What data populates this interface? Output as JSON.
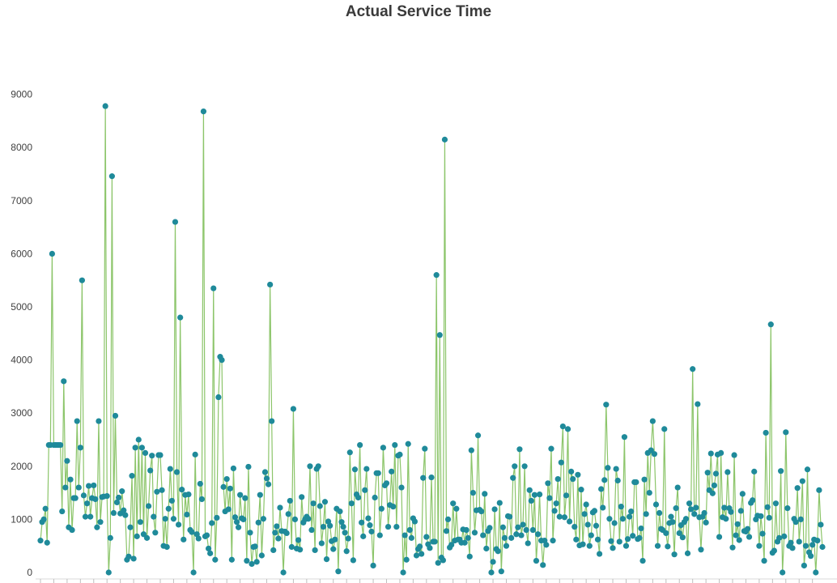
{
  "chart_data": {
    "type": "line",
    "title": "Actual Service Time",
    "xlabel": "",
    "ylabel": "",
    "ylim": [
      0,
      9800
    ],
    "yticks": [
      0,
      1000,
      2000,
      3000,
      4000,
      5000,
      6000,
      7000,
      8000,
      9000
    ],
    "grid": false,
    "legend": "none",
    "colors": {
      "line": "#8cc56a",
      "marker": "#1f8a9a",
      "axis": "#d9d9d9",
      "text": "#404040"
    },
    "series": [
      {
        "values": [
          600,
          950,
          1000,
          1200,
          560,
          2400,
          2400,
          6000,
          2400,
          2400,
          2400,
          2400,
          2400,
          1150,
          3600,
          1600,
          2100,
          850,
          1750,
          800,
          1400,
          1400,
          2850,
          1600,
          2350,
          5500,
          1450,
          1050,
          1300,
          1630,
          1050,
          1400,
          1640,
          1380,
          850,
          2850,
          950,
          1420,
          1430,
          8780,
          1440,
          0,
          650,
          7460,
          1120,
          2950,
          1320,
          1410,
          1110,
          1530,
          1170,
          1080,
          240,
          300,
          850,
          1820,
          260,
          2350,
          680,
          2500,
          950,
          2350,
          720,
          2250,
          650,
          1250,
          1920,
          2200,
          1050,
          750,
          1520,
          2210,
          2210,
          1550,
          500,
          1010,
          480,
          1200,
          1950,
          1350,
          1010,
          6600,
          1890,
          900,
          4800,
          1560,
          620,
          1460,
          1090,
          1470,
          800,
          760,
          0,
          2220,
          720,
          640,
          1670,
          1380,
          8680,
          680,
          700,
          450,
          360,
          930,
          5350,
          240,
          1030,
          3300,
          4060,
          4000,
          1610,
          1150,
          1760,
          1190,
          1580,
          240,
          1960,
          1040,
          950,
          850,
          1460,
          1020,
          1000,
          1400,
          220,
          1990,
          750,
          160,
          480,
          490,
          200,
          940,
          1460,
          320,
          1010,
          1890,
          1770,
          1660,
          5420,
          2850,
          420,
          750,
          870,
          640,
          1220,
          780,
          0,
          770,
          740,
          1100,
          1350,
          480,
          3080,
          1000,
          450,
          610,
          430,
          1420,
          940,
          1000,
          1050,
          1010,
          2000,
          800,
          1300,
          420,
          1950,
          2000,
          1250,
          550,
          860,
          1330,
          250,
          960,
          880,
          590,
          440,
          620,
          1200,
          20,
          1150,
          950,
          860,
          750,
          400,
          640,
          2260,
          1300,
          230,
          1940,
          1470,
          1410,
          2400,
          940,
          680,
          1550,
          1950,
          1020,
          890,
          770,
          130,
          1410,
          1870,
          1870,
          700,
          1200,
          2350,
          1640,
          1680,
          860,
          1270,
          1900,
          1240,
          2400,
          860,
          2200,
          2220,
          1600,
          0,
          700,
          240,
          2420,
          800,
          650,
          1020,
          960,
          320,
          440,
          490,
          350,
          1780,
          2330,
          670,
          530,
          460,
          1790,
          580,
          580,
          5600,
          180,
          4470,
          280,
          230,
          8150,
          780,
          1000,
          470,
          520,
          1300,
          600,
          1200,
          620,
          620,
          560,
          810,
          560,
          800,
          650,
          300,
          2300,
          1500,
          750,
          1170,
          2580,
          1180,
          1150,
          700,
          1480,
          450,
          780,
          840,
          0,
          200,
          1190,
          440,
          400,
          1310,
          20,
          850,
          650,
          500,
          1060,
          1050,
          650,
          1780,
          2000,
          720,
          850,
          2320,
          700,
          900,
          2000,
          800,
          550,
          1550,
          1350,
          800,
          1460,
          220,
          720,
          1470,
          600,
          140,
          600,
          520,
          1680,
          1400,
          2330,
          600,
          1160,
          1300,
          1760,
          1050,
          2070,
          2750,
          1040,
          1450,
          2700,
          960,
          1900,
          1760,
          860,
          620,
          1840,
          510,
          1560,
          530,
          1100,
          1280,
          900,
          500,
          700,
          1130,
          1160,
          880,
          620,
          350,
          1570,
          1220,
          1740,
          3160,
          1970,
          1010,
          590,
          460,
          930,
          1950,
          1730,
          580,
          1240,
          1010,
          2550,
          500,
          630,
          1050,
          1150,
          690,
          1700,
          1700,
          630,
          650,
          830,
          220,
          1750,
          1100,
          2250,
          1500,
          2300,
          2850,
          2230,
          1280,
          500,
          1120,
          820,
          800,
          2700,
          740,
          490,
          930,
          1050,
          950,
          340,
          1210,
          1600,
          740,
          890,
          660,
          950,
          1010,
          360,
          1300,
          1190,
          3830,
          1100,
          1220,
          3170,
          1040,
          430,
          1050,
          1120,
          940,
          1880,
          1550,
          2240,
          1490,
          1640,
          1860,
          2220,
          670,
          2250,
          1040,
          1220,
          1010,
          1890,
          1210,
          1140,
          470,
          2210,
          700,
          910,
          610,
          1160,
          1480,
          780,
          770,
          820,
          670,
          1310,
          1360,
          1900,
          1000,
          1070,
          500,
          1060,
          730,
          220,
          2630,
          1230,
          1030,
          4670,
          370,
          410,
          1300,
          580,
          650,
          1910,
          0,
          680,
          2640,
          1210,
          500,
          560,
          460,
          1010,
          950,
          1590,
          580,
          1000,
          1720,
          130,
          500,
          1940,
          380,
          310,
          520,
          620,
          0,
          600,
          1550,
          900,
          480
        ],
        "notes": "values estimated from the plotted markers"
      }
    ]
  }
}
